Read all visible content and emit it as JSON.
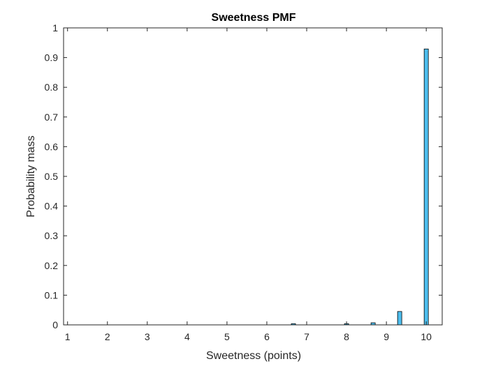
{
  "chart_data": {
    "type": "bar",
    "title": "Sweetness PMF",
    "xlabel": "Sweetness (points)",
    "ylabel": "Probability mass",
    "x": [
      6.667,
      8.0,
      8.667,
      9.333,
      10.0
    ],
    "values": [
      0.004,
      0.004,
      0.007,
      0.045,
      0.929
    ],
    "xlim": [
      0.9,
      10.4
    ],
    "ylim": [
      0,
      1
    ],
    "xticks": [
      "1",
      "2",
      "3",
      "4",
      "5",
      "6",
      "7",
      "8",
      "9",
      "10"
    ],
    "yticks": [
      "0",
      "0.1",
      "0.2",
      "0.3",
      "0.4",
      "0.5",
      "0.6",
      "0.7",
      "0.8",
      "0.9",
      "1"
    ],
    "grid": false,
    "colors": {
      "bar_fill": "#4DBEEE",
      "bar_edge": "#000000",
      "axis": "#262626"
    }
  }
}
